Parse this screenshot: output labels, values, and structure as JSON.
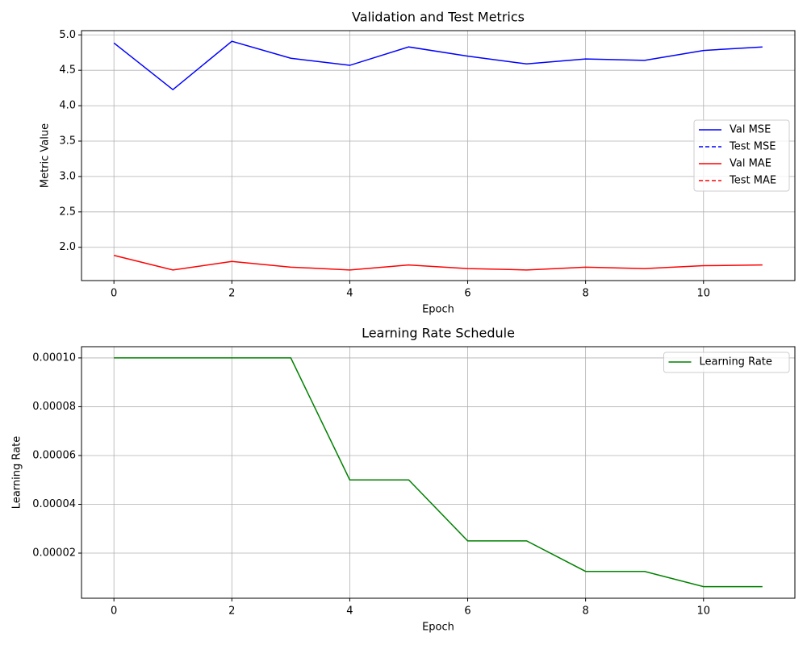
{
  "chart_data": [
    {
      "type": "line",
      "title": "Validation and Test Metrics",
      "xlabel": "Epoch",
      "ylabel": "Metric Value",
      "x": [
        0,
        1,
        2,
        3,
        4,
        5,
        6,
        7,
        8,
        9,
        10,
        11
      ],
      "series": [
        {
          "name": "Val MSE",
          "color": "#0000ff",
          "dashed": false,
          "values": [
            4.886,
            4.227,
            4.91,
            4.67,
            4.57,
            4.83,
            4.7,
            4.59,
            4.66,
            4.64,
            4.78,
            4.83
          ]
        },
        {
          "name": "Test MSE",
          "color": "#0000ff",
          "dashed": true,
          "values": [
            null,
            null,
            null,
            null,
            null,
            null,
            null,
            null,
            null,
            null,
            null,
            null
          ]
        },
        {
          "name": "Val MAE",
          "color": "#ff0000",
          "dashed": false,
          "values": [
            1.886,
            1.68,
            1.8,
            1.72,
            1.68,
            1.75,
            1.7,
            1.68,
            1.72,
            1.7,
            1.74,
            1.75
          ]
        },
        {
          "name": "Test MAE",
          "color": "#ff0000",
          "dashed": true,
          "values": [
            null,
            null,
            null,
            null,
            null,
            null,
            null,
            null,
            null,
            null,
            null,
            null
          ]
        }
      ],
      "xlim": [
        -0.55,
        11.55
      ],
      "xticks": [
        0,
        2,
        4,
        6,
        8,
        10
      ],
      "ylim": [
        1.53,
        5.06
      ],
      "yticks": [
        {
          "value": 2,
          "label": "2.0"
        },
        2.5,
        {
          "value": 3,
          "label": "3.0"
        },
        3.5,
        {
          "value": 4,
          "label": "4.0"
        },
        4.5,
        {
          "value": 5,
          "label": "5.0"
        }
      ],
      "grid": true,
      "legend": "center right"
    },
    {
      "type": "line",
      "title": "Learning Rate Schedule",
      "xlabel": "Epoch",
      "ylabel": "Learning Rate",
      "x": [
        0,
        1,
        2,
        3,
        4,
        5,
        6,
        7,
        8,
        9,
        10,
        11
      ],
      "series": [
        {
          "name": "Learning Rate",
          "color": "#008000",
          "dashed": false,
          "values": [
            0.0001,
            0.0001,
            0.0001,
            0.0001,
            5e-05,
            5e-05,
            2.5e-05,
            2.5e-05,
            1.25e-05,
            1.25e-05,
            6.25e-06,
            6.25e-06
          ]
        }
      ],
      "xlim": [
        -0.55,
        11.55
      ],
      "xticks": [
        0,
        2,
        4,
        6,
        8,
        10
      ],
      "ylim": [
        1.5e-06,
        0.0001046
      ],
      "yticks": [
        {
          "value": 2e-05,
          "label": "0.00002"
        },
        {
          "value": 4e-05,
          "label": "0.00004"
        },
        {
          "value": 6e-05,
          "label": "0.00006"
        },
        {
          "value": 8e-05,
          "label": "0.00008"
        },
        {
          "value": 0.0001,
          "label": "0.00010"
        }
      ],
      "grid": true,
      "legend": "upper right"
    }
  ]
}
